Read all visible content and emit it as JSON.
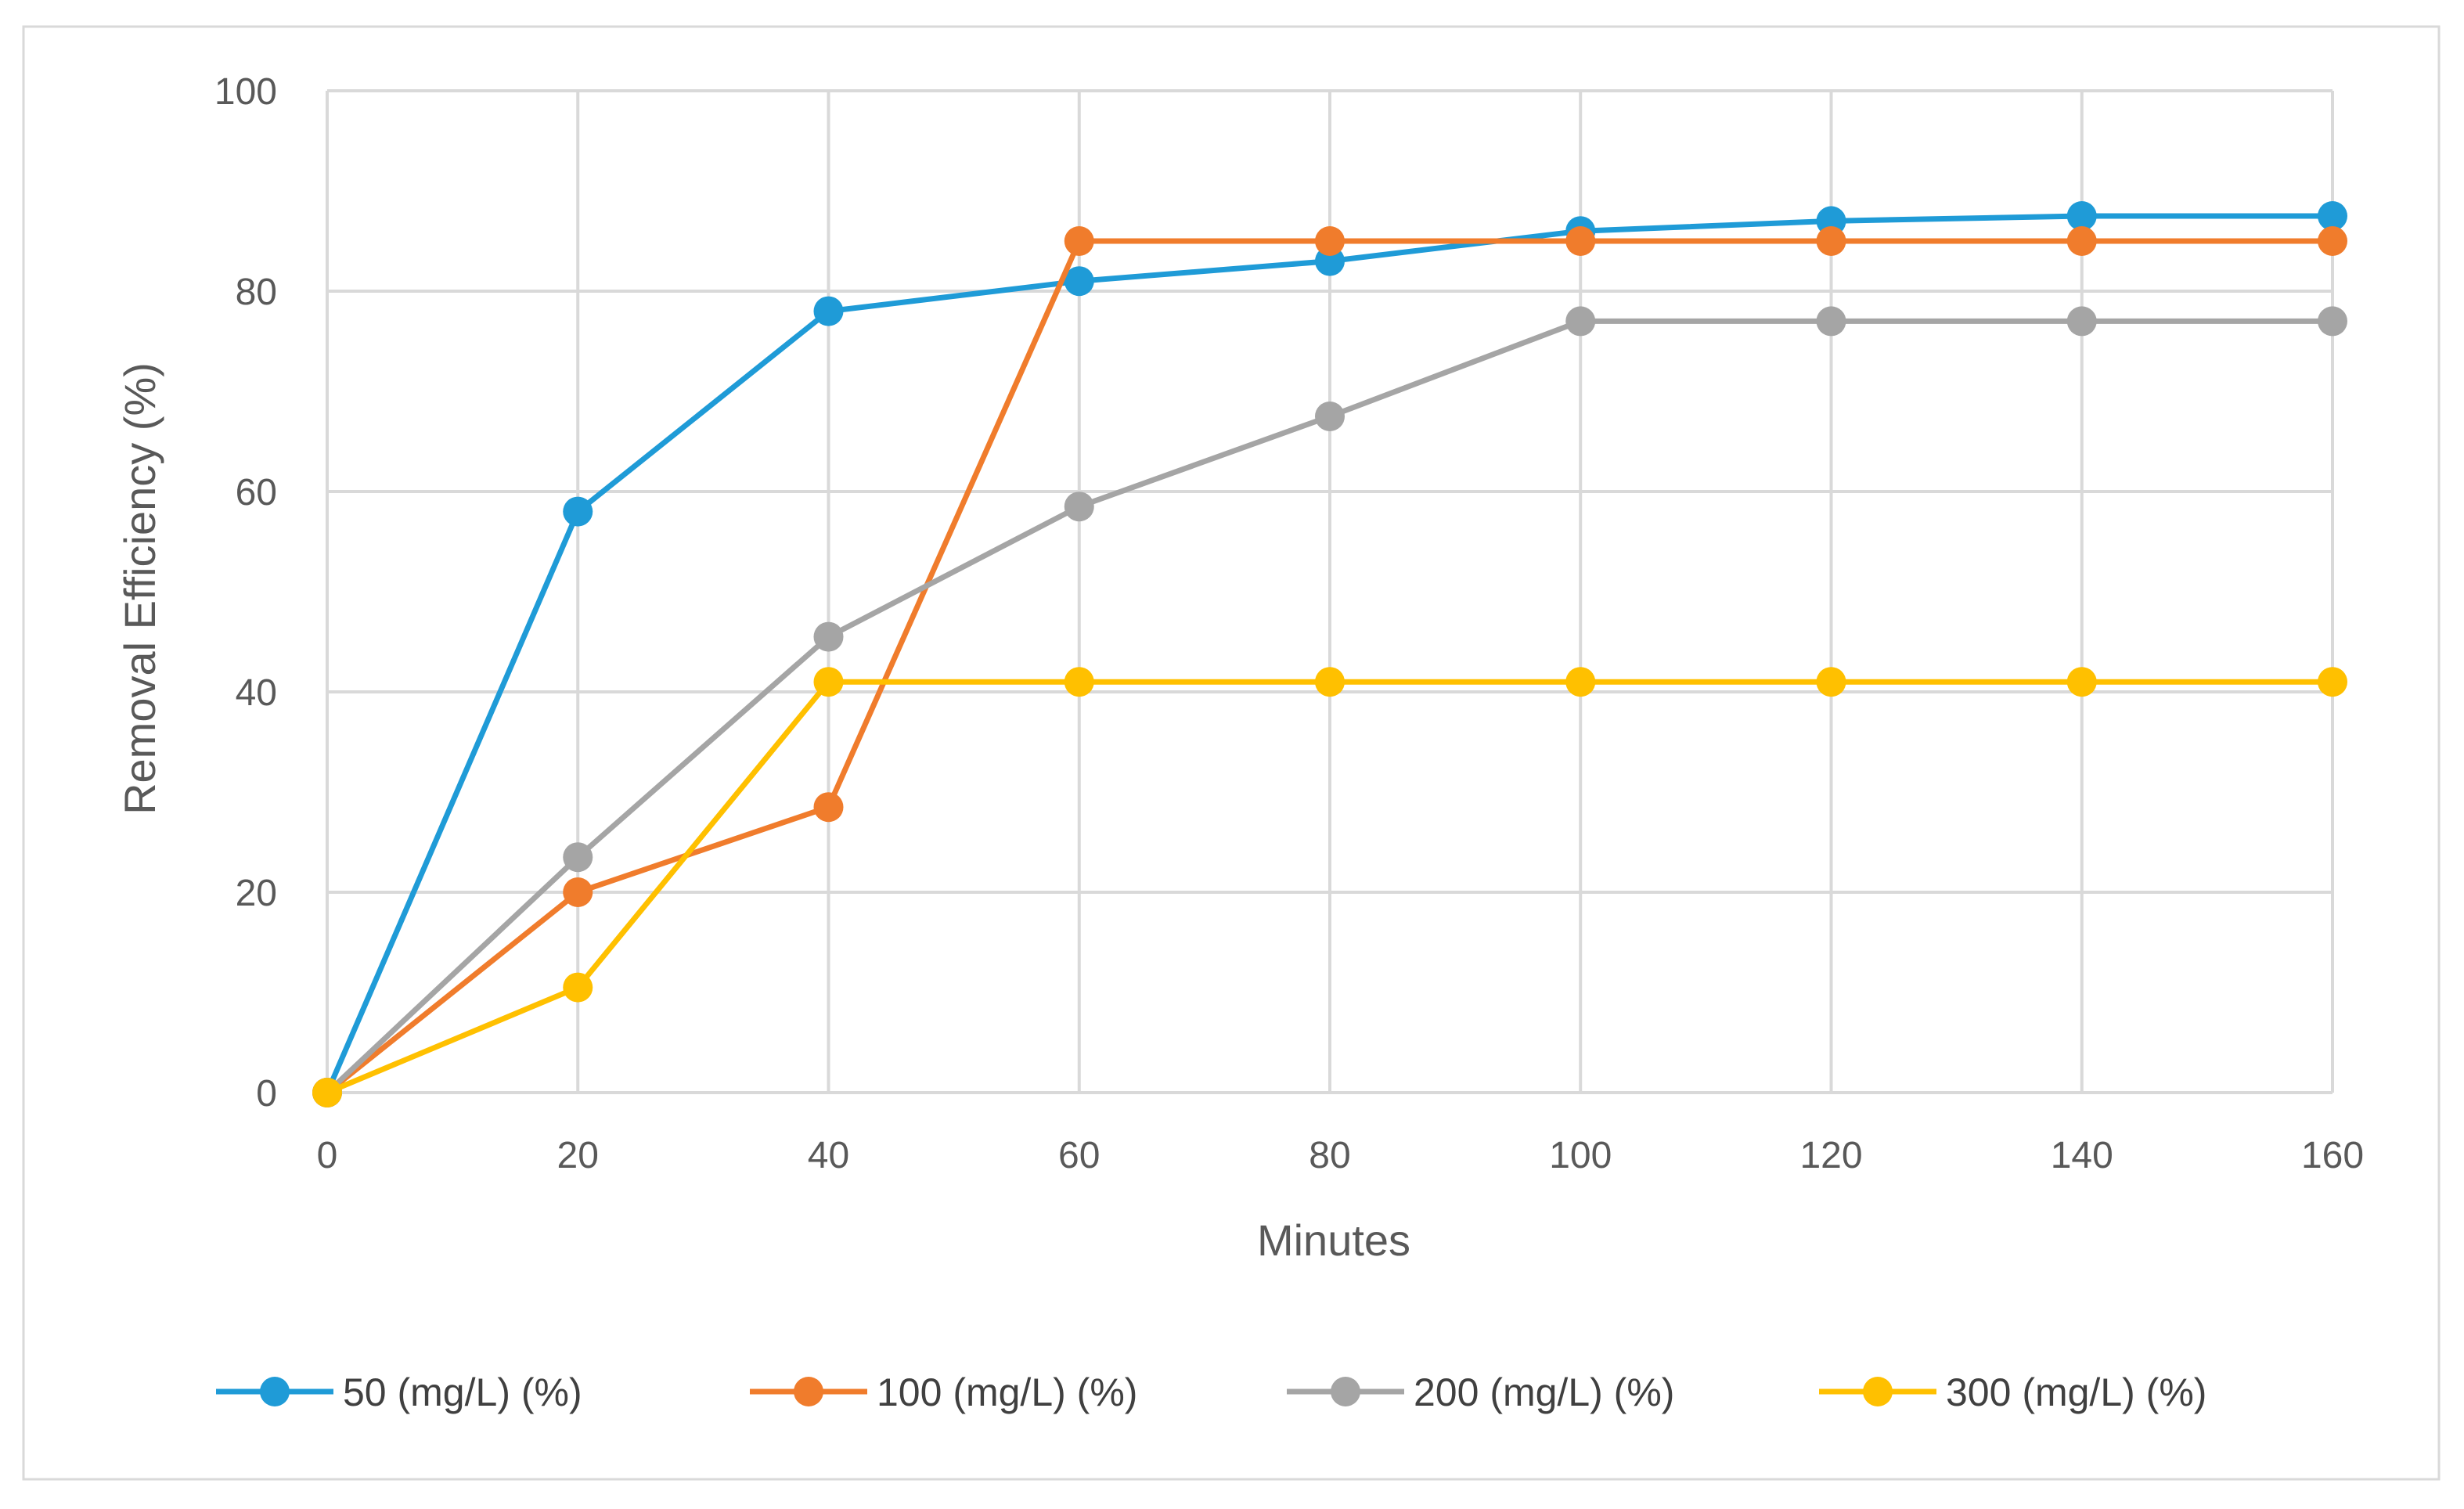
{
  "chart_data": {
    "type": "line",
    "title": "",
    "xlabel": "Minutes",
    "ylabel": "Removal Efficiency (%)",
    "x": [
      0,
      20,
      40,
      60,
      80,
      100,
      120,
      140,
      160
    ],
    "xlim": [
      0,
      160
    ],
    "ylim": [
      0,
      100
    ],
    "xticks": [
      "0",
      "20",
      "40",
      "60",
      "80",
      "100",
      "120",
      "140",
      "160"
    ],
    "yticks": [
      "0",
      "20",
      "40",
      "60",
      "80",
      "100"
    ],
    "grid": true,
    "legend_position": "bottom",
    "series": [
      {
        "name": "50 (mg/L) (%)",
        "color": "#1f9bd7",
        "values": [
          0,
          58,
          78,
          81,
          83,
          86,
          87,
          87.5,
          87.5
        ]
      },
      {
        "name": "100 (mg/L) (%)",
        "color": "#f07c2c",
        "values": [
          0,
          20,
          28.5,
          85,
          85,
          85,
          85,
          85,
          85
        ]
      },
      {
        "name": "200 (mg/L) (%)",
        "color": "#a5a5a5",
        "values": [
          0,
          23.5,
          45.5,
          58.5,
          67.5,
          77,
          77,
          77,
          77
        ]
      },
      {
        "name": "300 (mg/L) (%)",
        "color": "#ffc000",
        "values": [
          0,
          10.5,
          41,
          41,
          41,
          41,
          41,
          41,
          41
        ]
      }
    ]
  }
}
